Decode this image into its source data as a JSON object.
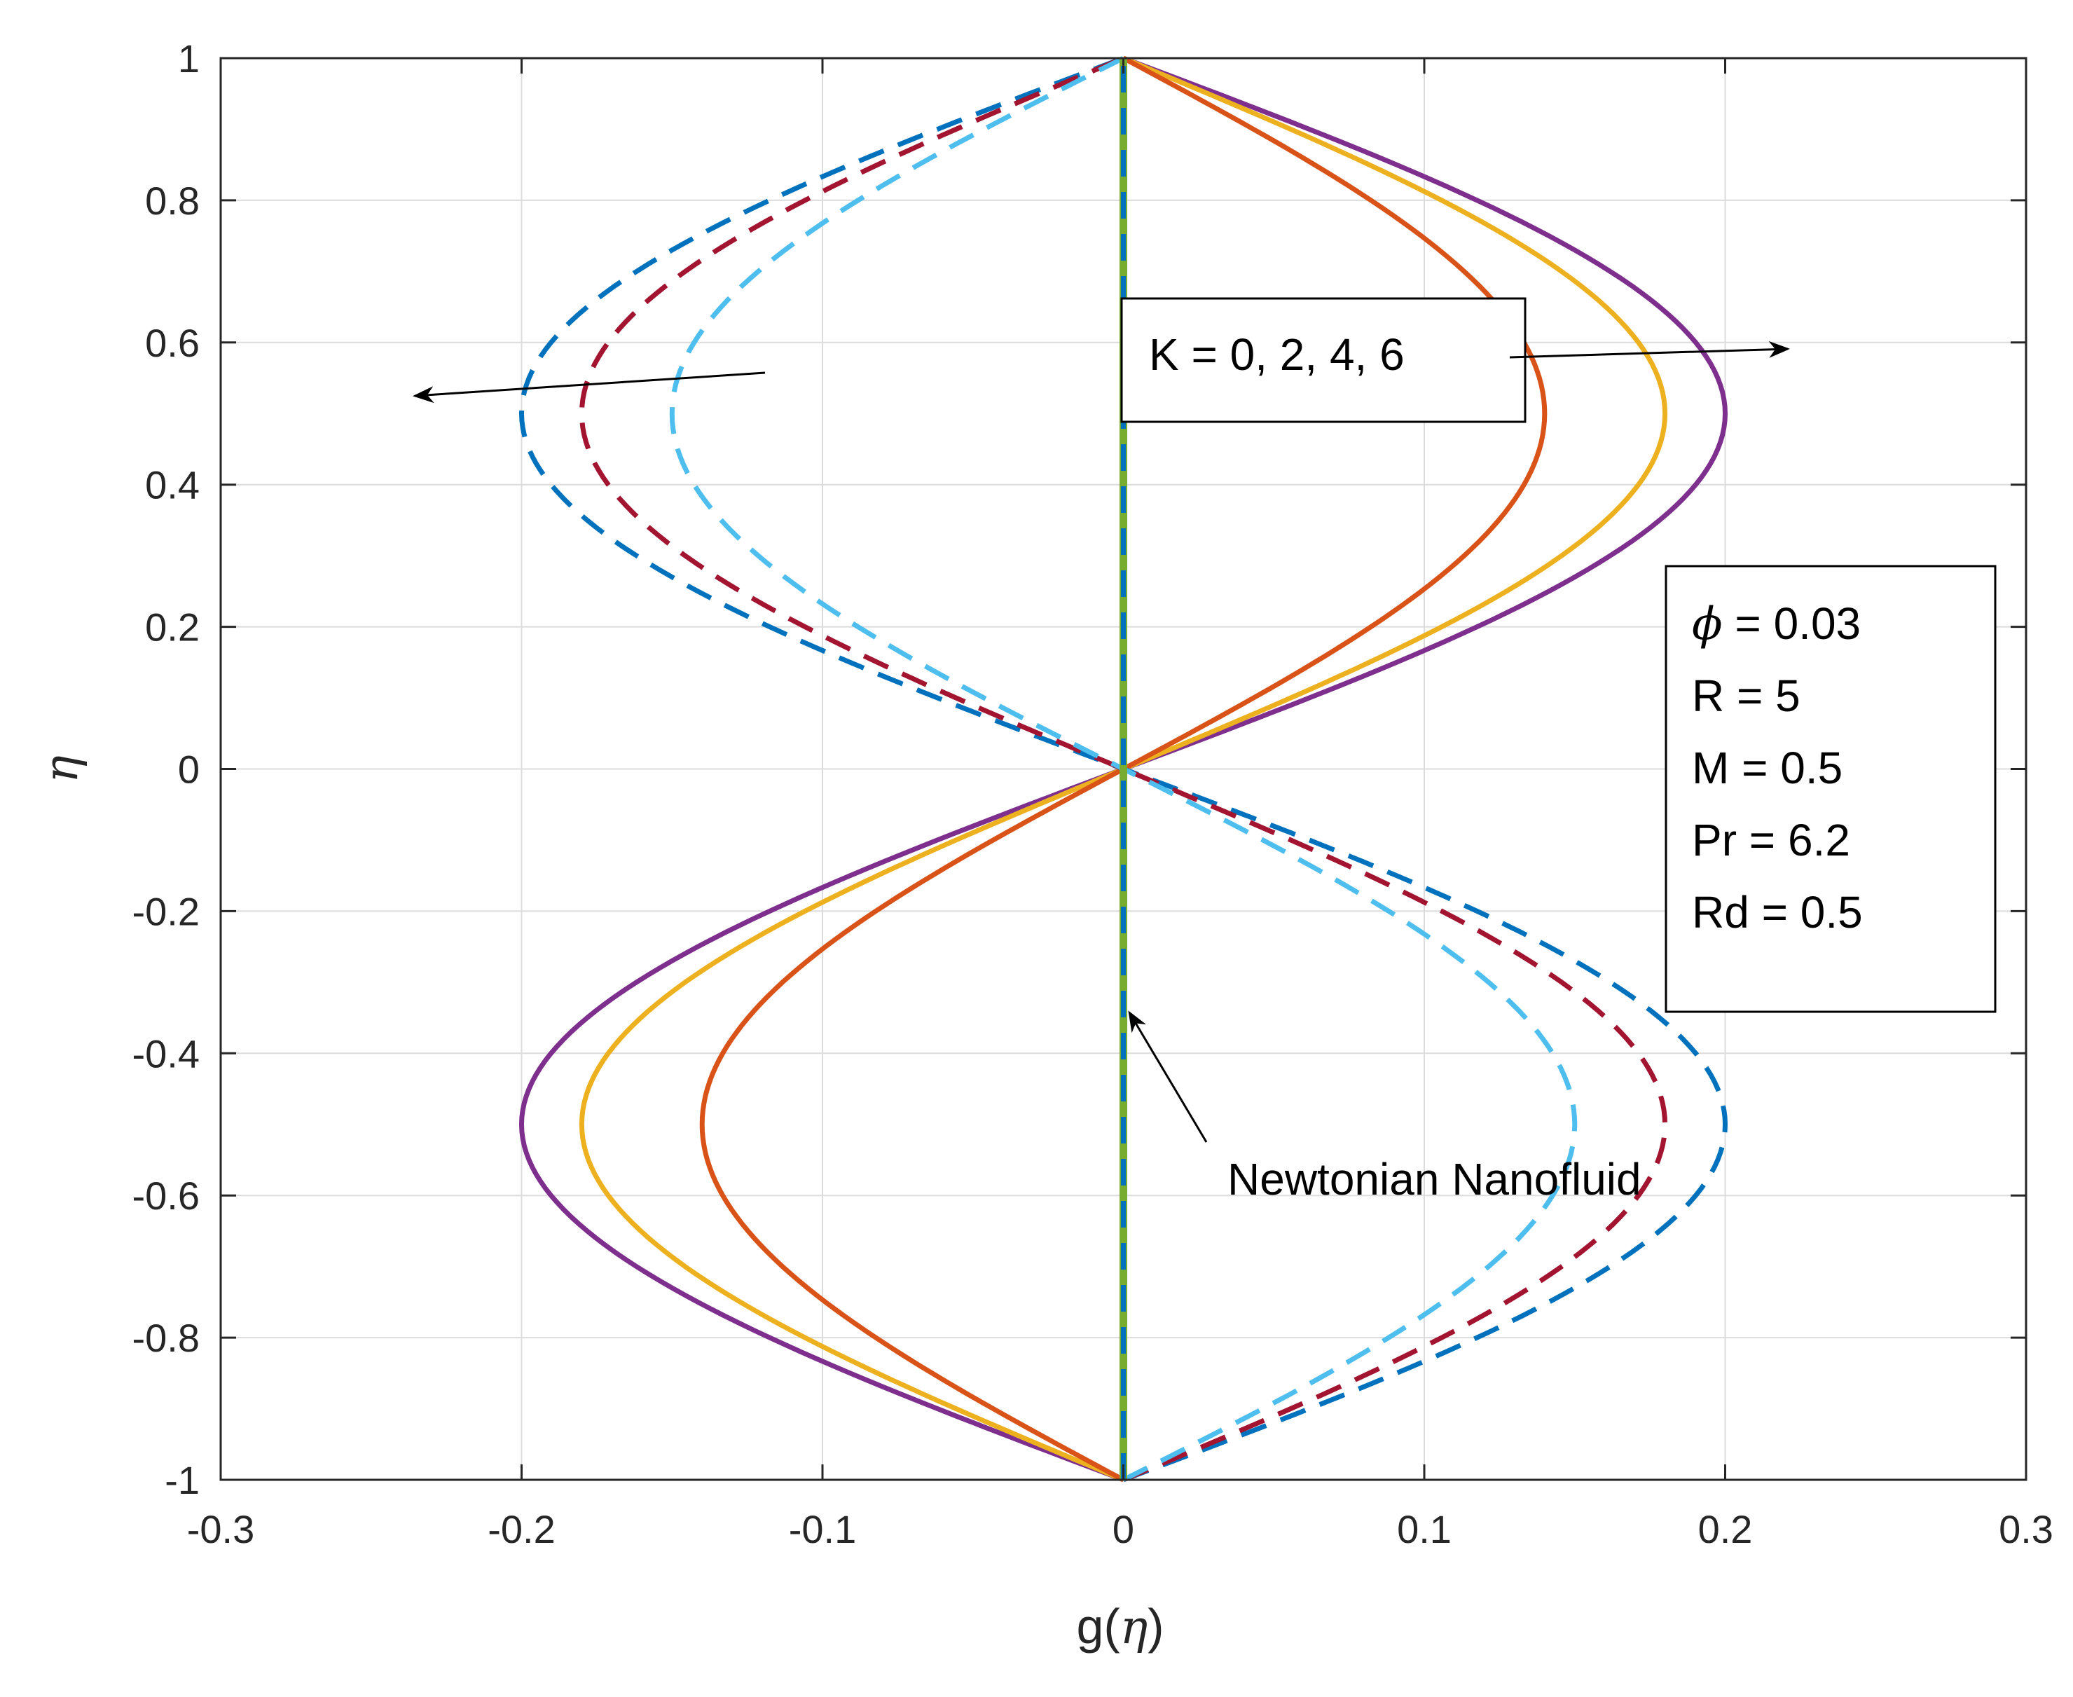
{
  "chart_data": {
    "type": "line",
    "xlabel_prefix": "g(",
    "xlabel_symbol": "η",
    "xlabel_suffix": ")",
    "ylabel": "η",
    "xlim": [
      -0.3,
      0.3
    ],
    "ylim": [
      -1,
      1
    ],
    "xticks": [
      "-0.3",
      "-0.2",
      "-0.1",
      "0",
      "0.1",
      "0.2",
      "0.3"
    ],
    "yticks": [
      "1",
      "0.8",
      "0.6",
      "0.4",
      "0.2",
      "0",
      "-0.2",
      "-0.4",
      "-0.6",
      "-0.8",
      "-1"
    ],
    "grid": true,
    "series": [
      {
        "style": "solid",
        "color": "#7e2f8e",
        "amplitude": 0.2,
        "shape": "sin"
      },
      {
        "style": "solid",
        "color": "#edb120",
        "amplitude": 0.18,
        "shape": "sin"
      },
      {
        "style": "solid",
        "color": "#d95319",
        "amplitude": 0.14,
        "shape": "sin"
      },
      {
        "style": "dashed",
        "color": "#0072bd",
        "amplitude": -0.2,
        "shape": "sin"
      },
      {
        "style": "dashed",
        "color": "#a2142f",
        "amplitude": -0.18,
        "shape": "sin"
      },
      {
        "style": "dashed",
        "color": "#4dbeee",
        "amplitude": -0.15,
        "shape": "sin"
      },
      {
        "style": "solid",
        "color": "#77ac30",
        "amplitude": 0.0,
        "shape": "zero"
      },
      {
        "style": "dashed",
        "color": "#0072bd",
        "amplitude": 0.0,
        "shape": "zero"
      }
    ],
    "annotations": {
      "k_label": "K = 0, 2, 4, 6",
      "newtonian_label": "Newtonian Nanofluid",
      "params": [
        {
          "symbol": "ϕ",
          "text": " = 0.03"
        },
        {
          "symbol": "",
          "text": "R = 5"
        },
        {
          "symbol": "",
          "text": "M = 0.5"
        },
        {
          "symbol": "",
          "text": "Pr = 6.2"
        },
        {
          "symbol": "",
          "text": "Rd = 0.5"
        }
      ]
    }
  }
}
